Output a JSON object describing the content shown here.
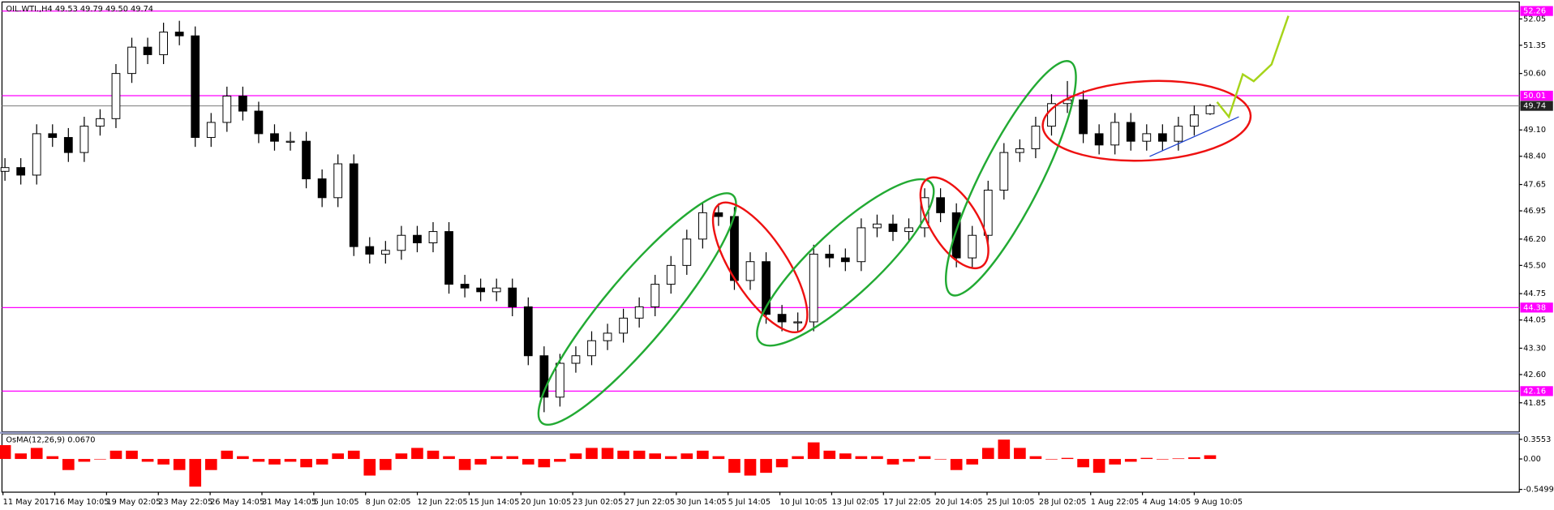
{
  "chart_data": [
    {
      "type": "candlestick",
      "title": "OIL.WTI.,H4",
      "title_values": "49.53 49.79 49.50 49.74",
      "open": [
        48.0,
        48.1,
        47.9,
        49.0,
        48.9,
        48.5,
        49.2,
        49.4,
        50.6,
        51.3,
        51.1,
        51.7,
        51.6,
        48.9,
        49.3,
        50.0,
        49.6,
        49.0,
        48.8,
        48.8,
        47.8,
        47.3,
        48.2,
        46.0,
        45.8,
        45.9,
        46.3,
        46.1,
        46.4,
        45.0,
        44.9,
        44.8,
        44.9,
        44.4,
        43.1,
        42.0,
        42.9,
        43.1,
        43.5,
        43.7,
        44.1,
        44.4,
        45.0,
        45.5,
        46.2,
        46.9,
        46.8,
        45.1,
        45.6,
        44.2,
        44.0,
        44.0,
        45.8,
        45.7,
        45.6,
        46.5,
        46.6,
        46.4,
        46.5,
        47.3,
        46.9,
        45.7,
        46.3,
        47.5,
        48.5,
        48.6,
        49.2,
        49.8,
        49.9,
        49.0,
        48.7,
        49.3,
        48.8,
        49.0,
        48.8,
        49.2,
        49.53
      ],
      "high": [
        48.35,
        48.35,
        49.25,
        49.25,
        49.15,
        49.45,
        49.65,
        50.85,
        51.55,
        51.55,
        51.95,
        52.0,
        51.85,
        49.55,
        50.25,
        50.25,
        49.85,
        49.25,
        49.05,
        49.05,
        48.05,
        48.45,
        48.45,
        46.25,
        46.15,
        46.55,
        46.55,
        46.65,
        46.65,
        45.25,
        45.15,
        45.15,
        45.15,
        44.65,
        43.35,
        43.15,
        43.35,
        43.75,
        43.95,
        44.35,
        44.65,
        45.25,
        45.75,
        46.45,
        47.15,
        47.15,
        47.05,
        45.85,
        45.85,
        44.45,
        44.25,
        46.05,
        46.05,
        45.95,
        46.75,
        46.85,
        46.85,
        46.75,
        47.55,
        47.55,
        47.15,
        46.55,
        47.75,
        48.75,
        48.85,
        49.45,
        50.05,
        50.4,
        50.15,
        49.25,
        49.55,
        49.55,
        49.25,
        49.25,
        49.45,
        49.75,
        49.79
      ],
      "low": [
        47.75,
        47.65,
        47.65,
        48.65,
        48.25,
        48.25,
        48.95,
        49.15,
        50.35,
        50.85,
        50.85,
        51.35,
        48.65,
        48.65,
        49.05,
        49.35,
        48.75,
        48.55,
        48.55,
        47.55,
        47.05,
        47.05,
        45.75,
        45.55,
        45.55,
        45.65,
        45.85,
        45.85,
        44.75,
        44.65,
        44.55,
        44.55,
        44.15,
        42.85,
        41.6,
        41.75,
        42.65,
        42.85,
        43.25,
        43.45,
        43.85,
        44.15,
        44.75,
        45.25,
        45.95,
        46.55,
        44.85,
        44.85,
        43.95,
        43.75,
        43.75,
        43.75,
        45.45,
        45.35,
        45.35,
        46.25,
        46.15,
        46.15,
        46.25,
        46.65,
        45.45,
        45.45,
        46.05,
        47.25,
        48.25,
        48.35,
        48.95,
        49.55,
        48.75,
        48.45,
        48.45,
        48.55,
        48.55,
        48.55,
        48.55,
        48.95,
        49.5
      ],
      "close": [
        48.1,
        47.9,
        49.0,
        48.9,
        48.5,
        49.2,
        49.4,
        50.6,
        51.3,
        51.1,
        51.7,
        51.6,
        48.9,
        49.3,
        50.0,
        49.6,
        49.0,
        48.8,
        48.8,
        47.8,
        47.3,
        48.2,
        46.0,
        45.8,
        45.9,
        46.3,
        46.1,
        46.4,
        45.0,
        44.9,
        44.8,
        44.9,
        44.4,
        43.1,
        42.0,
        42.9,
        43.1,
        43.5,
        43.7,
        44.1,
        44.4,
        45.0,
        45.5,
        46.2,
        46.9,
        46.8,
        45.1,
        45.6,
        44.2,
        44.0,
        44.0,
        45.8,
        45.7,
        45.6,
        46.5,
        46.6,
        46.4,
        46.5,
        47.3,
        46.9,
        45.7,
        46.3,
        47.5,
        48.5,
        48.6,
        49.2,
        49.8,
        49.9,
        49.0,
        48.7,
        49.3,
        48.8,
        49.0,
        48.8,
        49.2,
        49.5,
        49.74
      ],
      "up_color": "#ffffff",
      "down_color": "#000000",
      "ylim": [
        41.08,
        52.5
      ],
      "yticks": [
        52.05,
        51.35,
        {
          "value": 50.6,
          "label": "50.60"
        },
        {
          "value": 49.1,
          "label": "49.10"
        },
        {
          "value": 48.4,
          "label": "48.40"
        },
        47.65,
        46.95,
        {
          "value": 46.2,
          "label": "46.20"
        },
        {
          "value": 45.5,
          "label": "45.50"
        },
        44.75,
        44.05,
        {
          "value": 43.3,
          "label": "43.30"
        },
        {
          "value": 42.6,
          "label": "42.60"
        },
        41.85
      ],
      "levels": [
        52.26,
        50.01,
        44.38,
        42.16
      ],
      "level_color": "#ff00ff",
      "current_price": 49.74,
      "x_labels": [
        "11 May 2017",
        "16 May 10:05",
        "19 May 02:05",
        "23 May 22:05",
        "26 May 14:05",
        "31 May 14:05",
        "5 Jun 10:05",
        "8 Jun 02:05",
        "12 Jun 22:05",
        "15 Jun 14:05",
        "20 Jun 10:05",
        "23 Jun 02:05",
        "27 Jun 22:05",
        "30 Jun 14:05",
        "5 Jul 14:05",
        "10 Jul 10:05",
        "13 Jul 02:05",
        "17 Jul 22:05",
        "20 Jul 14:05",
        "25 Jul 10:05",
        "28 Jul 02:05",
        "1 Aug 22:05",
        "4 Aug 14:05",
        "9 Aug 10:05"
      ]
    },
    {
      "type": "histogram",
      "title": "OsMA(12,26,9)",
      "title_value": "0.0670",
      "color": "#ff0000",
      "values": [
        0.25,
        0.1,
        0.2,
        0.05,
        -0.2,
        -0.05,
        0.0,
        0.15,
        0.15,
        -0.05,
        -0.1,
        -0.2,
        -0.5,
        -0.2,
        0.15,
        0.05,
        -0.05,
        -0.1,
        -0.05,
        -0.15,
        -0.1,
        0.1,
        0.15,
        -0.3,
        -0.2,
        0.1,
        0.2,
        0.15,
        0.05,
        -0.2,
        -0.1,
        0.05,
        0.05,
        -0.1,
        -0.15,
        -0.05,
        0.1,
        0.2,
        0.2,
        0.15,
        0.15,
        0.1,
        0.05,
        0.1,
        0.15,
        0.05,
        -0.25,
        -0.3,
        -0.25,
        -0.15,
        0.05,
        0.3,
        0.15,
        0.1,
        0.05,
        0.05,
        -0.1,
        -0.05,
        0.05,
        0.0,
        -0.2,
        -0.1,
        0.2,
        0.35,
        0.2,
        0.05,
        0.0,
        0.02,
        -0.15,
        -0.25,
        -0.1,
        -0.05,
        0.02,
        0.0,
        0.01,
        0.03,
        0.067
      ],
      "ylim": [
        -0.6,
        0.42
      ],
      "yticks": [
        0.3553,
        {
          "value": 0,
          "label": "0.00"
        },
        -0.5499
      ]
    }
  ]
}
